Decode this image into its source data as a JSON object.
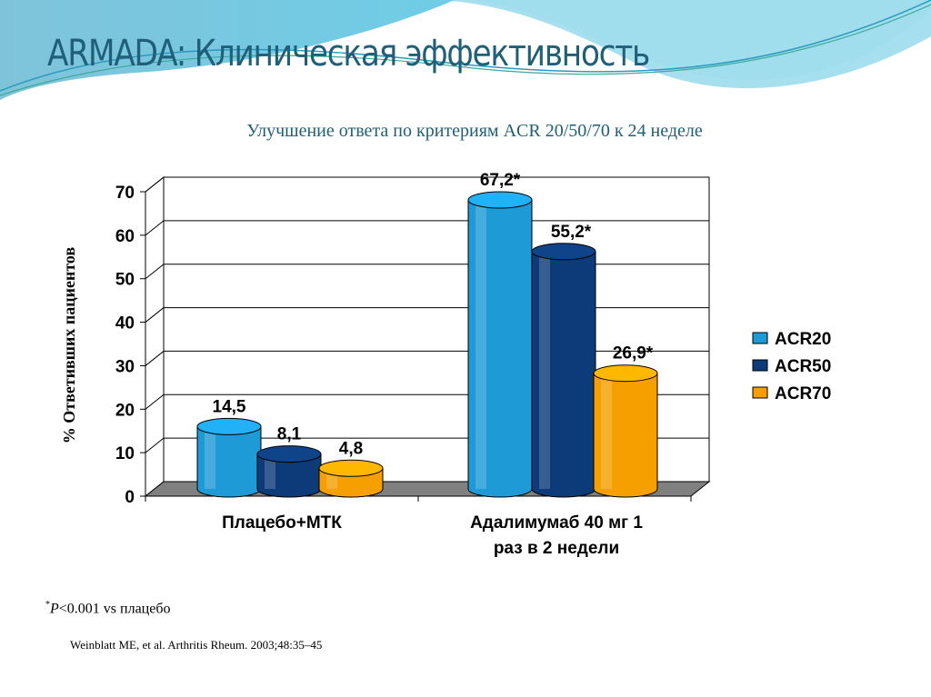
{
  "slide": {
    "title": "ARMADA: Клиническая эффективность",
    "footnote_marker": "*",
    "footnote_p": "P",
    "footnote_rest": "<0.001 vs плацебо",
    "reference": "Weinblatt ME, et al. Arthritis Rheum. 2003;48:35–45"
  },
  "chart_data": {
    "type": "bar",
    "style": "3d-cylinder",
    "title": "Улучшение ответа по критериям ACR 20/50/70 к 24 неделе",
    "ylabel": "% Ответивших пациентов",
    "xlabel": "",
    "ylim": [
      0,
      70
    ],
    "yticks": [
      "0",
      "10",
      "20",
      "30",
      "40",
      "50",
      "60",
      "70"
    ],
    "grid": true,
    "legend_position": "right",
    "categories": [
      "Плацебо+МТК",
      "Адалимумаб 40 мг 1 раз в 2 недели"
    ],
    "category_lines": [
      [
        "Плацебо+МТК"
      ],
      [
        "Адалимумаб 40 мг 1",
        "раз в 2 недели"
      ]
    ],
    "series": [
      {
        "name": "ACR20",
        "color": "#1e9ad6",
        "values": [
          14.5,
          67.2
        ],
        "labels": [
          "14,5",
          "67,2*"
        ]
      },
      {
        "name": "ACR50",
        "color": "#0d3a78",
        "values": [
          8.1,
          55.2
        ],
        "labels": [
          "8,1",
          "55,2*"
        ]
      },
      {
        "name": "ACR70",
        "color": "#f5a000",
        "values": [
          4.8,
          26.9
        ],
        "labels": [
          "4,8",
          "26,9*"
        ]
      }
    ]
  }
}
